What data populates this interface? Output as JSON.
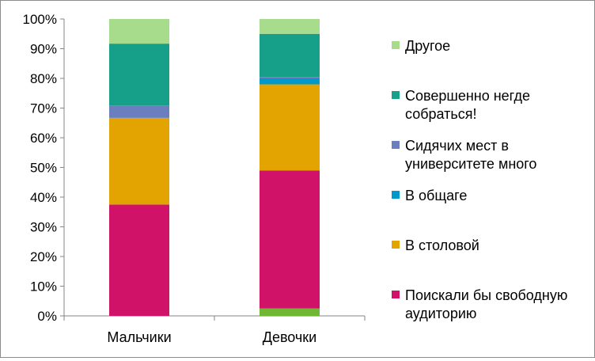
{
  "chart_data": {
    "type": "bar",
    "stacked": true,
    "percent_stacked": true,
    "categories": [
      "Мальчики",
      "Девочки"
    ],
    "ylim": [
      0,
      100
    ],
    "yticks": [
      "0%",
      "10%",
      "20%",
      "30%",
      "40%",
      "50%",
      "60%",
      "70%",
      "80%",
      "90%",
      "100%"
    ],
    "grid": false,
    "legend_position": "right",
    "series": [
      {
        "name": "",
        "color": "#70b833",
        "values": [
          0,
          2.5
        ]
      },
      {
        "name": "Поискали бы свободную аудиторию",
        "label_lines": [
          "Поискали бы свободную",
          "аудиторию"
        ],
        "color": "#d01268",
        "values": [
          37.5,
          46.5
        ]
      },
      {
        "name": "В столовой",
        "label_lines": [
          "В столовой"
        ],
        "color": "#e3a300",
        "values": [
          29.2,
          29.0
        ]
      },
      {
        "name": "В общаге",
        "label_lines": [
          "В общаге"
        ],
        "color": "#0099cc",
        "values": [
          0,
          2.0
        ]
      },
      {
        "name": "Сидячих мест в университете много",
        "label_lines": [
          "Сидячих мест в",
          "университете много"
        ],
        "color": "#6b7fbf",
        "values": [
          4.2,
          0.5
        ]
      },
      {
        "name": "Совершенно негде собраться!",
        "label_lines": [
          "Совершенно негде",
          "собраться!"
        ],
        "color": "#16a089",
        "values": [
          20.8,
          14.5
        ]
      },
      {
        "name": "Другое",
        "label_lines": [
          "Другое"
        ],
        "color": "#a6dc8c",
        "values": [
          8.3,
          5.0
        ]
      }
    ]
  }
}
